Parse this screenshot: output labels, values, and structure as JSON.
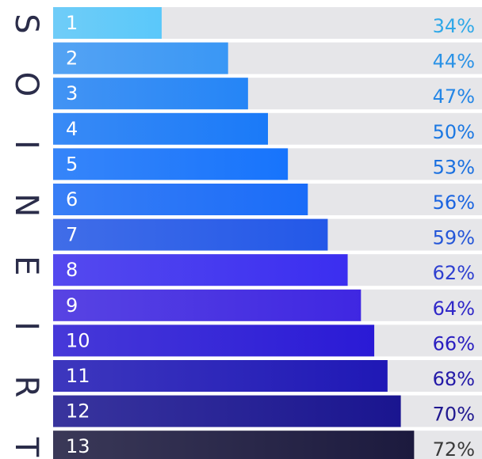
{
  "chart_data": {
    "type": "bar",
    "orientation": "horizontal",
    "side_title": "TRIENIOS",
    "categories": [
      "1",
      "2",
      "3",
      "4",
      "5",
      "6",
      "7",
      "8",
      "9",
      "10",
      "11",
      "12",
      "13"
    ],
    "values": [
      34,
      44,
      47,
      50,
      53,
      56,
      59,
      62,
      64,
      66,
      68,
      70,
      72
    ],
    "value_labels": [
      "34%",
      "44%",
      "47%",
      "50%",
      "53%",
      "56%",
      "59%",
      "62%",
      "64%",
      "66%",
      "68%",
      "70%",
      "72%"
    ],
    "bar_colors": [
      "#5ac8fa",
      "#3a97f5",
      "#2585f6",
      "#1a7af8",
      "#1774fc",
      "#1a6cf8",
      "#2358e8",
      "#3b2ef0",
      "#3f27e2",
      "#2a1ad6",
      "#1f18b6",
      "#1a1590",
      "#1c1a3e"
    ],
    "label_colors": [
      "#2fa8e8",
      "#2a92e6",
      "#2486e6",
      "#1c78e2",
      "#1a70e0",
      "#1b64e0",
      "#2456d8",
      "#2e3fd0",
      "#3028c8",
      "#2a1ec0",
      "#241aa8",
      "#201890",
      "#3a3a3a"
    ],
    "track_color": "#e6e6e9"
  }
}
